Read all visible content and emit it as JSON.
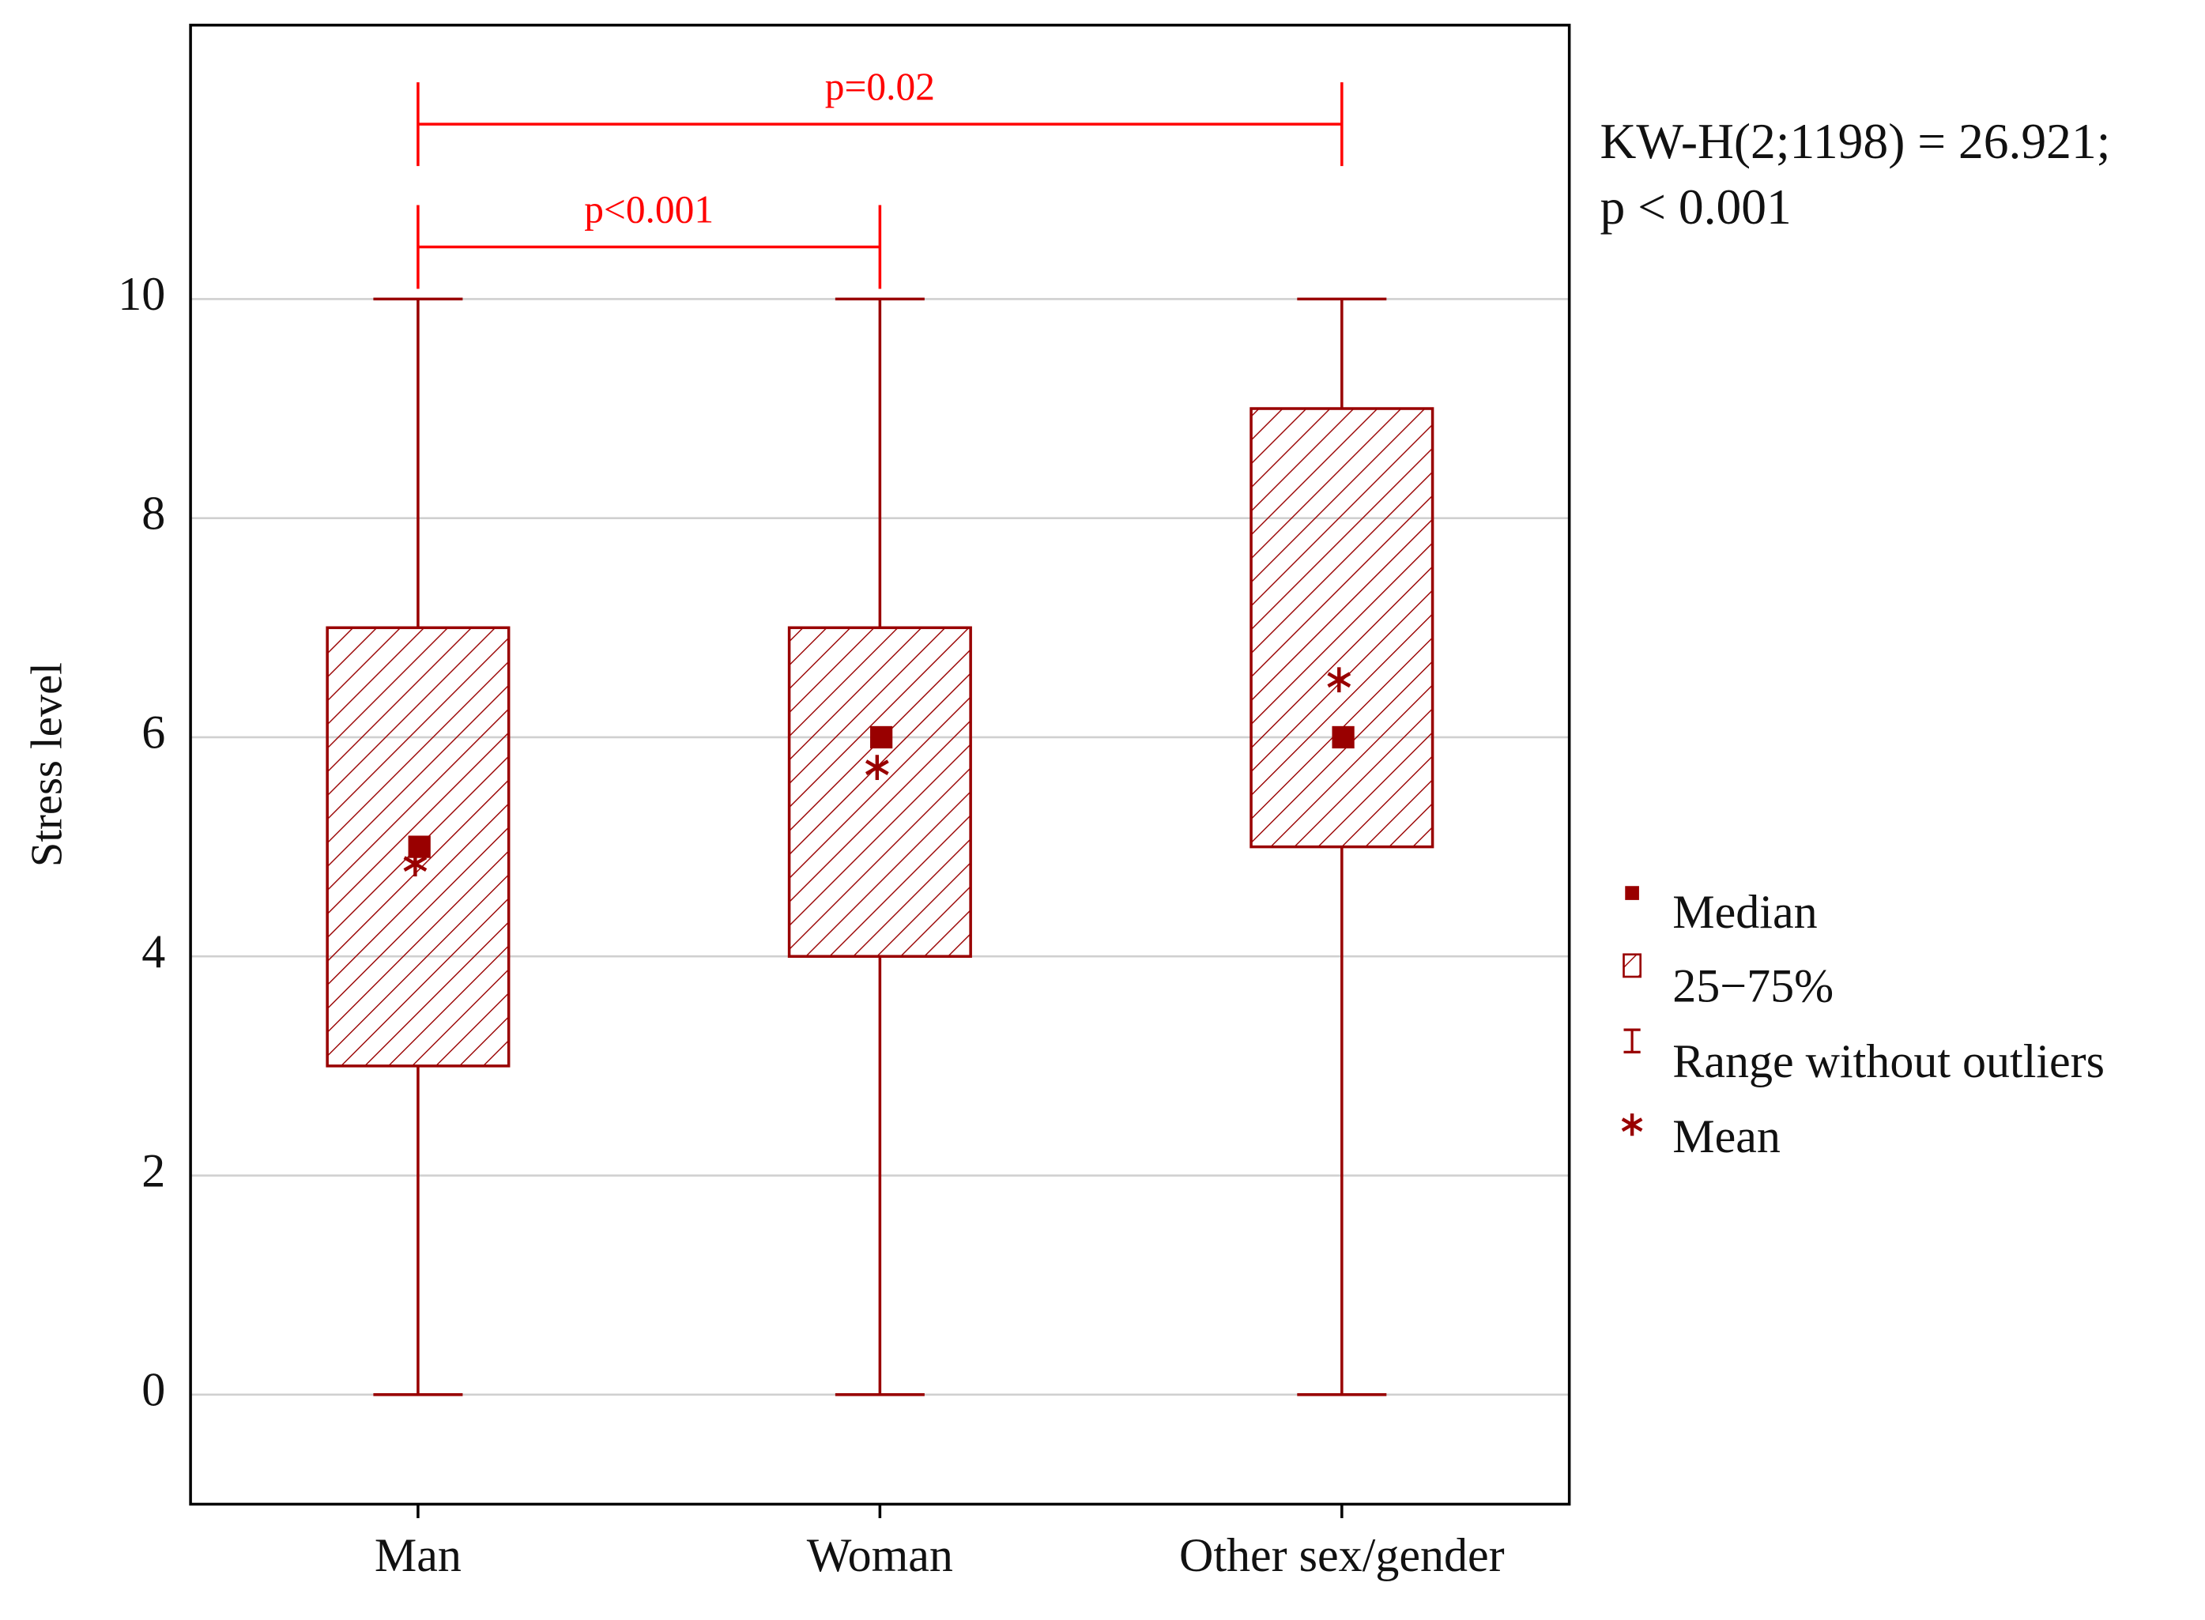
{
  "chart_data": {
    "type": "box",
    "y_label": "Stress level",
    "categories": [
      "Man",
      "Woman",
      "Other sex/gender"
    ],
    "boxes": {
      "min": [
        0,
        0,
        0
      ],
      "q1": [
        3,
        4,
        5
      ],
      "median": [
        5,
        6,
        6
      ],
      "q3": [
        7,
        7,
        9
      ],
      "max": [
        10,
        10,
        10
      ],
      "mean": [
        4.87,
        5.75,
        6.55
      ]
    },
    "color": "#990000",
    "ylim": [
      -1,
      12.5
    ],
    "yticks": [
      0,
      2,
      4,
      6,
      8,
      10
    ],
    "grid": true,
    "comparisons": [
      {
        "label": "p<0.001",
        "from": 0,
        "to": 1,
        "color": "#ff0000"
      },
      {
        "label": "p=0.02",
        "from": 0,
        "to": 2,
        "color": "#ff0000"
      }
    ],
    "stat_lines": [
      "KW-H(2;1198) = 26.921;",
      "p < 0.001"
    ],
    "legend": {
      "median": "Median",
      "box": "25−75%",
      "range": "Range without outliers",
      "mean": "Mean"
    }
  }
}
